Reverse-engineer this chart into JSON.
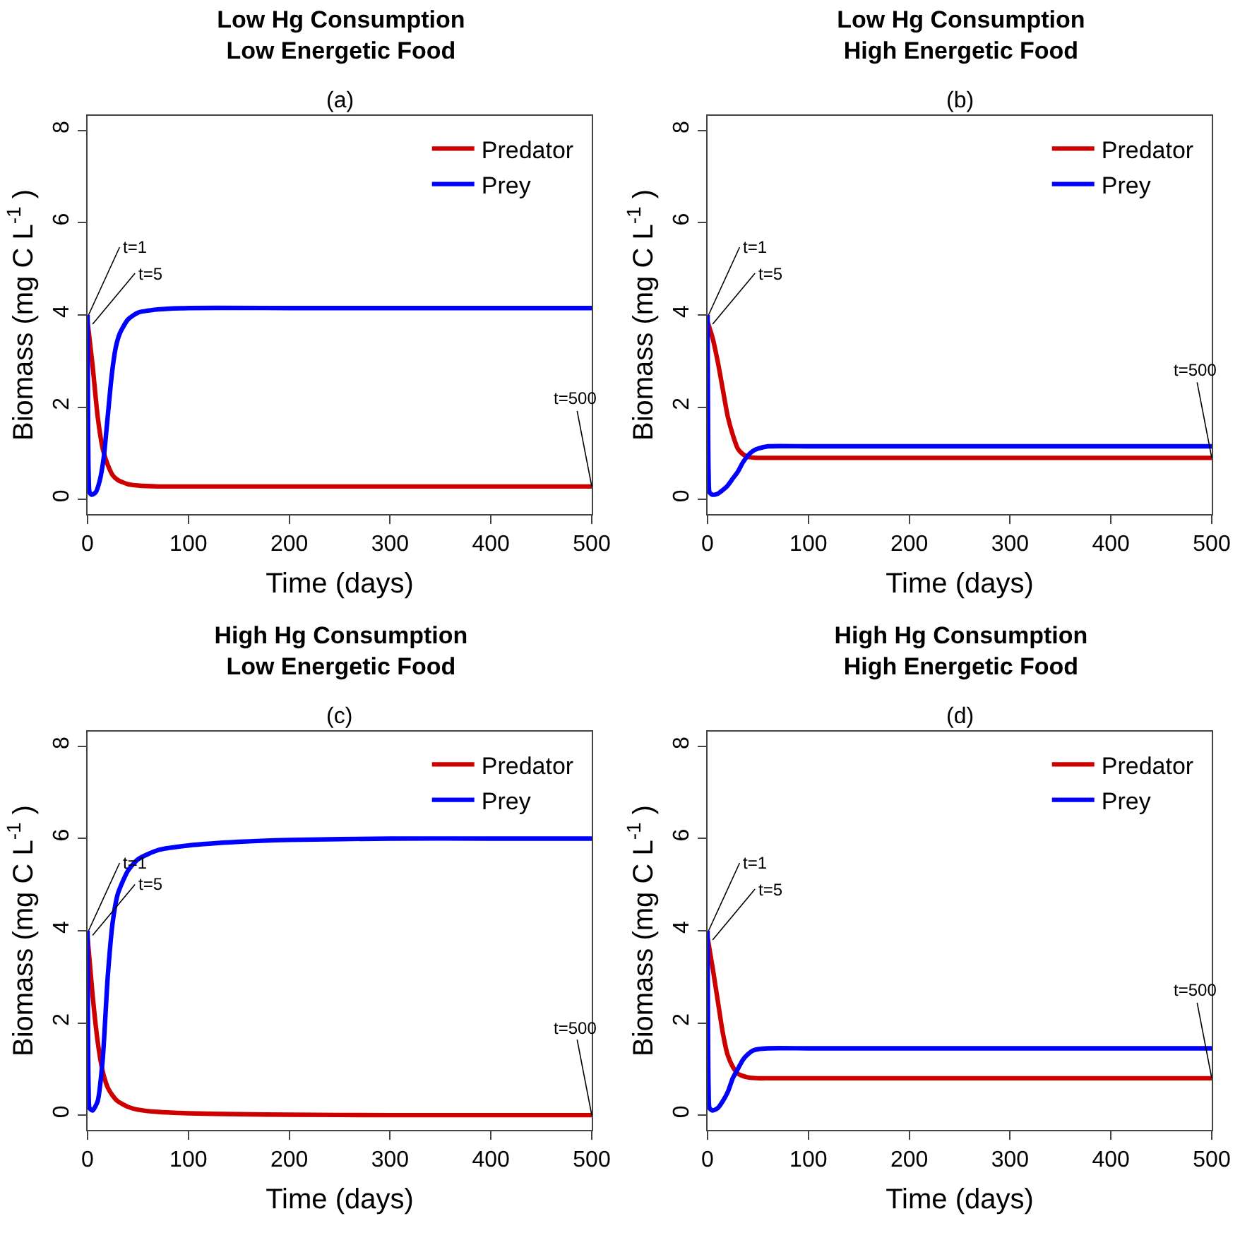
{
  "chart_data": [
    {
      "type": "line",
      "title": "Low Hg Consumption\nLow Energetic Food",
      "subtitle": "(a)",
      "xlabel": "Time (days)",
      "ylabel": "Biomass (mg C L$^{-1}$ )",
      "xlim": [
        0,
        500
      ],
      "ylim": [
        -0.32,
        8.32
      ],
      "xticks": [
        0,
        100,
        200,
        300,
        400,
        500
      ],
      "yticks": [
        0,
        2,
        4,
        6,
        8
      ],
      "legend": "top right",
      "series": [
        {
          "name": "Predator",
          "color": "#cd0000",
          "x": [
            0,
            5,
            10,
            15,
            20,
            25,
            30,
            40,
            50,
            70,
            100,
            200,
            300,
            400,
            500
          ],
          "values": [
            3.85,
            2.9,
            1.8,
            1.1,
            0.75,
            0.52,
            0.42,
            0.33,
            0.3,
            0.28,
            0.28,
            0.28,
            0.28,
            0.28,
            0.28
          ]
        },
        {
          "name": "Prey",
          "color": "#0000ff",
          "x": [
            0,
            1,
            2,
            4,
            8,
            12,
            16,
            20,
            24,
            28,
            32,
            40,
            50,
            70,
            100,
            200,
            300,
            400,
            500
          ],
          "values": [
            4.0,
            0.6,
            0.15,
            0.1,
            0.15,
            0.4,
            0.9,
            1.8,
            2.7,
            3.3,
            3.6,
            3.9,
            4.05,
            4.12,
            4.15,
            4.15,
            4.15,
            4.15,
            4.15
          ]
        }
      ],
      "annotations": [
        {
          "text": "t=1",
          "x": 1,
          "y": 4.0
        },
        {
          "text": "t=5",
          "x": 5,
          "y": 3.8
        },
        {
          "text": "t=500",
          "x": 500,
          "y": 0.28
        }
      ]
    },
    {
      "type": "line",
      "title": "Low Hg Consumption\nHigh Energetic Food",
      "subtitle": "(b)",
      "xlabel": "Time (days)",
      "ylabel": "Biomass (mg C L$^{-1}$ )",
      "xlim": [
        0,
        500
      ],
      "ylim": [
        -0.32,
        8.32
      ],
      "xticks": [
        0,
        100,
        200,
        300,
        400,
        500
      ],
      "yticks": [
        0,
        2,
        4,
        6,
        8
      ],
      "legend": "top right",
      "series": [
        {
          "name": "Predator",
          "color": "#cd0000",
          "x": [
            0,
            5,
            10,
            15,
            20,
            25,
            30,
            35,
            40,
            50,
            60,
            100,
            200,
            300,
            400,
            500
          ],
          "values": [
            3.85,
            3.5,
            3.0,
            2.4,
            1.8,
            1.4,
            1.1,
            0.98,
            0.92,
            0.9,
            0.9,
            0.9,
            0.9,
            0.9,
            0.9,
            0.9
          ]
        },
        {
          "name": "Prey",
          "color": "#0000ff",
          "x": [
            0,
            1,
            2,
            5,
            10,
            15,
            20,
            25,
            30,
            35,
            40,
            45,
            50,
            60,
            100,
            200,
            300,
            400,
            500
          ],
          "values": [
            4.0,
            0.6,
            0.15,
            0.1,
            0.12,
            0.2,
            0.3,
            0.45,
            0.6,
            0.8,
            0.95,
            1.05,
            1.1,
            1.15,
            1.15,
            1.15,
            1.15,
            1.15,
            1.15
          ]
        }
      ],
      "annotations": [
        {
          "text": "t=1",
          "x": 1,
          "y": 4.0
        },
        {
          "text": "t=5",
          "x": 5,
          "y": 3.8
        },
        {
          "text": "t=500",
          "x": 500,
          "y": 0.9
        }
      ]
    },
    {
      "type": "line",
      "title": "High Hg Consumption\nLow Energetic Food",
      "subtitle": "(c)",
      "xlabel": "Time (days)",
      "ylabel": "Biomass (mg C L$^{-1}$ )",
      "xlim": [
        0,
        500
      ],
      "ylim": [
        -0.32,
        8.32
      ],
      "xticks": [
        0,
        100,
        200,
        300,
        400,
        500
      ],
      "yticks": [
        0,
        2,
        4,
        6,
        8
      ],
      "legend": "top right",
      "series": [
        {
          "name": "Predator",
          "color": "#cd0000",
          "x": [
            0,
            5,
            10,
            15,
            20,
            25,
            30,
            40,
            50,
            70,
            100,
            150,
            200,
            300,
            400,
            500
          ],
          "values": [
            3.85,
            2.6,
            1.6,
            0.95,
            0.6,
            0.42,
            0.3,
            0.18,
            0.12,
            0.07,
            0.04,
            0.02,
            0.01,
            0.0,
            0.0,
            0.0
          ]
        },
        {
          "name": "Prey",
          "color": "#0000ff",
          "x": [
            0,
            1,
            2,
            5,
            10,
            15,
            20,
            25,
            30,
            40,
            50,
            70,
            100,
            150,
            200,
            300,
            400,
            500
          ],
          "values": [
            4.0,
            0.6,
            0.15,
            0.1,
            0.3,
            1.2,
            3.0,
            4.2,
            4.8,
            5.3,
            5.55,
            5.75,
            5.85,
            5.93,
            5.97,
            6.0,
            6.0,
            6.0
          ]
        }
      ],
      "annotations": [
        {
          "text": "t=1",
          "x": 1,
          "y": 4.0
        },
        {
          "text": "t=5",
          "x": 5,
          "y": 3.9
        },
        {
          "text": "t=500",
          "x": 500,
          "y": 0.0
        }
      ]
    },
    {
      "type": "line",
      "title": "High Hg Consumption\nHigh Energetic Food",
      "subtitle": "(d)",
      "xlabel": "Time (days)",
      "ylabel": "Biomass (mg C L$^{-1}$ )",
      "xlim": [
        0,
        500
      ],
      "ylim": [
        -0.32,
        8.32
      ],
      "xticks": [
        0,
        100,
        200,
        300,
        400,
        500
      ],
      "yticks": [
        0,
        2,
        4,
        6,
        8
      ],
      "legend": "top right",
      "series": [
        {
          "name": "Predator",
          "color": "#cd0000",
          "x": [
            0,
            5,
            10,
            15,
            20,
            25,
            30,
            35,
            40,
            50,
            60,
            100,
            200,
            300,
            400,
            500
          ],
          "values": [
            3.85,
            3.2,
            2.5,
            1.8,
            1.3,
            1.05,
            0.9,
            0.85,
            0.82,
            0.8,
            0.8,
            0.8,
            0.8,
            0.8,
            0.8,
            0.8
          ]
        },
        {
          "name": "Prey",
          "color": "#0000ff",
          "x": [
            0,
            1,
            2,
            5,
            10,
            15,
            20,
            25,
            30,
            35,
            40,
            45,
            50,
            60,
            100,
            200,
            300,
            400,
            500
          ],
          "values": [
            4.0,
            0.6,
            0.15,
            0.1,
            0.15,
            0.3,
            0.5,
            0.8,
            1.0,
            1.2,
            1.32,
            1.4,
            1.43,
            1.45,
            1.45,
            1.45,
            1.45,
            1.45,
            1.45
          ]
        }
      ],
      "annotations": [
        {
          "text": "t=1",
          "x": 1,
          "y": 4.0
        },
        {
          "text": "t=5",
          "x": 5,
          "y": 3.8
        },
        {
          "text": "t=500",
          "x": 500,
          "y": 0.8
        }
      ]
    }
  ]
}
